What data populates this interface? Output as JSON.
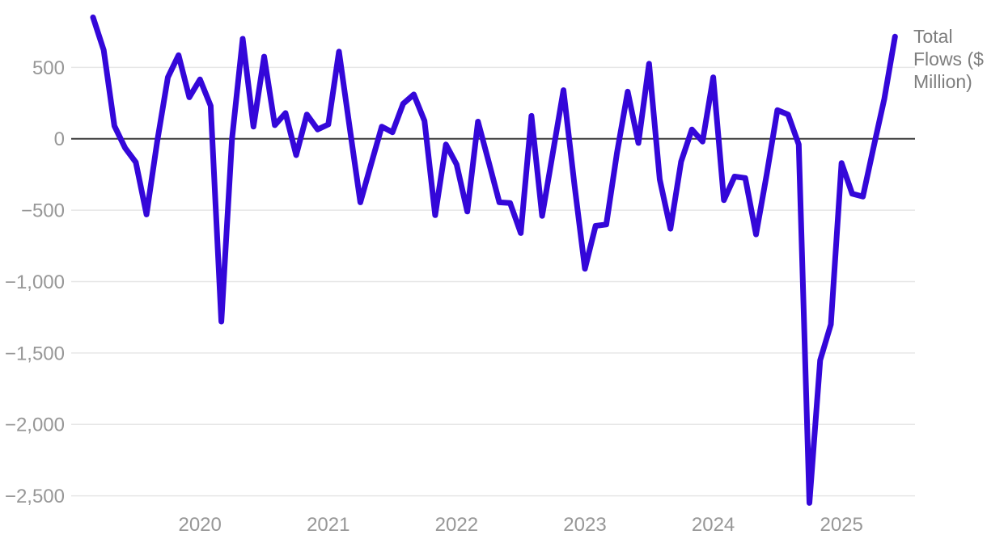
{
  "chart_data": {
    "type": "line",
    "title": "",
    "xlabel": "",
    "ylabel": "",
    "x_start_label": "2019-03",
    "x_frequency": "monthly",
    "x_tick_labels": [
      "2020",
      "2021",
      "2022",
      "2023",
      "2024",
      "2025"
    ],
    "y_ticks": [
      {
        "value": 500,
        "label": "500"
      },
      {
        "value": 0,
        "label": "0"
      },
      {
        "value": -500,
        "label": "−500"
      },
      {
        "value": -1000,
        "label": "−1,000"
      },
      {
        "value": -1500,
        "label": "−1,500"
      },
      {
        "value": -2000,
        "label": "−2,000"
      },
      {
        "value": -2500,
        "label": "−2,500"
      }
    ],
    "ylim": [
      -2650,
      900
    ],
    "grid": true,
    "zero_line": true,
    "legend_position": "top-right",
    "series": [
      {
        "name": "Total Flows ($ Million)",
        "color": "#3407d9",
        "values": [
          850,
          620,
          90,
          -65,
          -165,
          -530,
          -20,
          430,
          585,
          290,
          415,
          230,
          -1280,
          0,
          700,
          85,
          575,
          95,
          180,
          -115,
          170,
          65,
          100,
          610,
          80,
          -445,
          -180,
          85,
          45,
          245,
          310,
          125,
          -535,
          -40,
          -180,
          -510,
          120,
          -160,
          -445,
          -450,
          -660,
          160,
          -540,
          -100,
          340,
          -310,
          -910,
          -610,
          -600,
          -100,
          330,
          -30,
          525,
          -285,
          -630,
          -160,
          65,
          -20,
          430,
          -430,
          -265,
          -275,
          -670,
          -250,
          200,
          170,
          -40,
          -2550,
          -1550,
          -1300,
          -170,
          -385,
          -405,
          -60,
          280,
          715
        ]
      }
    ]
  },
  "legend": {
    "label": "Total Flows ($ Million)"
  },
  "colors": {
    "line": "#3407d9",
    "grid": "#e6e6e6",
    "zero_line": "#3c3c3c",
    "axis_text": "#979797",
    "legend_text": "#7e7e7e",
    "background": "#ffffff"
  }
}
